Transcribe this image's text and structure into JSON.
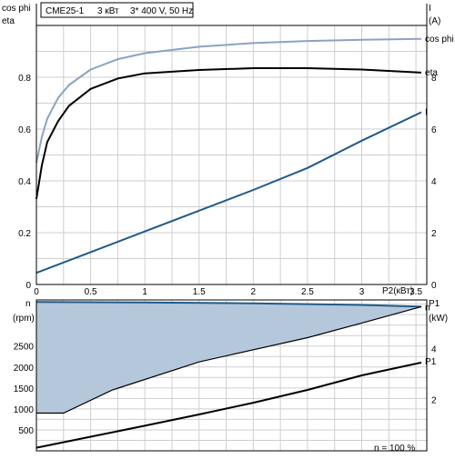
{
  "header": {
    "model": "CME25-1",
    "power": "3 кВт",
    "supply": "3* 400 V, 50 Hz"
  },
  "colors": {
    "cos_phi": "#8aa4bf",
    "eta": "#000000",
    "current": "#1f5a8a",
    "speed_line": "#1f5a8a",
    "speed_fill": "#b5c7da",
    "p1": "#000000",
    "grid": "#cfcfcf"
  },
  "chart_data": [
    {
      "type": "line",
      "title": "",
      "x_label": "P2(кВт)",
      "xlim": [
        0,
        3.6
      ],
      "x_ticks": [
        "0",
        "0.5",
        "1",
        "1.5",
        "2",
        "2.5",
        "3",
        "3.5"
      ],
      "left_axis": {
        "label_top": "cos phi",
        "label_bottom": "eta",
        "ylim": [
          0,
          1.0
        ],
        "ticks": [
          "0",
          "0.2",
          "0.4",
          "0.6",
          "0.8"
        ]
      },
      "right_axis": {
        "label_top": "I",
        "label_bottom": "(A)",
        "ylim": [
          0,
          10
        ],
        "ticks": [
          "0",
          "2",
          "4",
          "6",
          "8"
        ]
      },
      "grid": true,
      "series": [
        {
          "name": "cos phi",
          "axis": "left",
          "points": [
            [
              0,
              0.47
            ],
            [
              0.05,
              0.57
            ],
            [
              0.1,
              0.64
            ],
            [
              0.2,
              0.72
            ],
            [
              0.3,
              0.77
            ],
            [
              0.5,
              0.83
            ],
            [
              0.75,
              0.87
            ],
            [
              1.0,
              0.893
            ],
            [
              1.5,
              0.918
            ],
            [
              2.0,
              0.932
            ],
            [
              2.5,
              0.94
            ],
            [
              3.0,
              0.945
            ],
            [
              3.55,
              0.948
            ]
          ]
        },
        {
          "name": "eta",
          "axis": "left",
          "points": [
            [
              0,
              0.33
            ],
            [
              0.05,
              0.46
            ],
            [
              0.1,
              0.55
            ],
            [
              0.2,
              0.63
            ],
            [
              0.3,
              0.69
            ],
            [
              0.5,
              0.755
            ],
            [
              0.75,
              0.795
            ],
            [
              1.0,
              0.815
            ],
            [
              1.5,
              0.828
            ],
            [
              2.0,
              0.835
            ],
            [
              2.5,
              0.835
            ],
            [
              3.0,
              0.83
            ],
            [
              3.55,
              0.818
            ]
          ]
        },
        {
          "name": "I",
          "axis": "right",
          "points": [
            [
              0,
              0.45
            ],
            [
              0.5,
              1.25
            ],
            [
              1.0,
              2.05
            ],
            [
              1.5,
              2.85
            ],
            [
              2.0,
              3.65
            ],
            [
              2.5,
              4.5
            ],
            [
              3.0,
              5.55
            ],
            [
              3.55,
              6.65
            ]
          ]
        }
      ]
    },
    {
      "type": "area",
      "x_label": "n  = 100 %",
      "left_axis": {
        "label_top": "n",
        "label_bottom": "(rpm)",
        "ylim": [
          0,
          3600
        ],
        "ticks": [
          "500",
          "1000",
          "1500",
          "2000",
          "2500"
        ]
      },
      "right_axis": {
        "label_top": "P1",
        "label_bottom": "(kW)",
        "ylim": [
          0,
          5.9
        ],
        "ticks": [
          "2",
          "4"
        ]
      },
      "series": [
        {
          "name": "n",
          "axis": "left",
          "role": "max speed",
          "points": [
            [
              0,
              3550
            ],
            [
              1.0,
              3540
            ],
            [
              2.0,
              3520
            ],
            [
              3.0,
              3480
            ],
            [
              3.55,
              3440
            ]
          ]
        },
        {
          "name": "",
          "axis": "left",
          "role": "min speed",
          "points": [
            [
              0,
              900
            ],
            [
              0.25,
              900
            ],
            [
              0.7,
              1450
            ],
            [
              1.5,
              2120
            ],
            [
              2.5,
              2700
            ],
            [
              3.0,
              3050
            ],
            [
              3.55,
              3440
            ]
          ]
        },
        {
          "name": "P1",
          "axis": "right",
          "points": [
            [
              0,
              0.12
            ],
            [
              0.5,
              0.55
            ],
            [
              1.0,
              0.98
            ],
            [
              1.5,
              1.42
            ],
            [
              2.0,
              1.88
            ],
            [
              2.5,
              2.38
            ],
            [
              3.0,
              2.95
            ],
            [
              3.55,
              3.45
            ]
          ]
        }
      ]
    }
  ]
}
